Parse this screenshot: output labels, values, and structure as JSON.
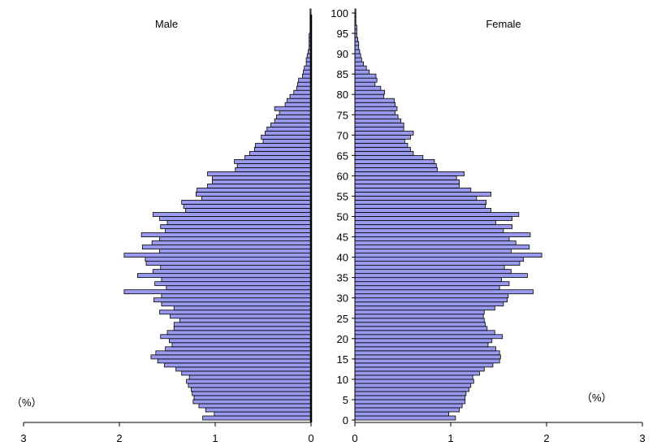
{
  "chart_data": {
    "type": "bar",
    "orientation": "horizontal",
    "layout": "population-pyramid",
    "age_axis": {
      "min": 0,
      "max": 100,
      "step": 5,
      "tick_labels": [
        "0",
        "5",
        "10",
        "15",
        "20",
        "25",
        "30",
        "35",
        "40",
        "45",
        "50",
        "55",
        "60",
        "65",
        "70",
        "75",
        "80",
        "85",
        "90",
        "95",
        "100"
      ]
    },
    "male_panel": {
      "title": "Male",
      "unit_label": "（%）",
      "xlim": [
        0,
        3
      ],
      "direction": "reversed",
      "tick_labels": [
        "0",
        "1",
        "2",
        "3"
      ]
    },
    "female_panel": {
      "title": "Female",
      "unit_label": "（%）",
      "xlim": [
        0,
        3
      ],
      "tick_labels": [
        "0",
        "1",
        "2",
        "3"
      ]
    },
    "ages": [
      0,
      1,
      2,
      3,
      4,
      5,
      6,
      7,
      8,
      9,
      10,
      11,
      12,
      13,
      14,
      15,
      16,
      17,
      18,
      19,
      20,
      21,
      22,
      23,
      24,
      25,
      26,
      27,
      28,
      29,
      30,
      31,
      32,
      33,
      34,
      35,
      36,
      37,
      38,
      39,
      40,
      41,
      42,
      43,
      44,
      45,
      46,
      47,
      48,
      49,
      50,
      51,
      52,
      53,
      54,
      55,
      56,
      57,
      58,
      59,
      60,
      61,
      62,
      63,
      64,
      65,
      66,
      67,
      68,
      69,
      70,
      71,
      72,
      73,
      74,
      75,
      76,
      77,
      78,
      79,
      80,
      81,
      82,
      83,
      84,
      85,
      86,
      87,
      88,
      89,
      90,
      91,
      92,
      93,
      94,
      95,
      96,
      97,
      98,
      99,
      100
    ],
    "series": [
      {
        "name": "Male",
        "values": [
          1.13,
          1.01,
          1.1,
          1.17,
          1.23,
          1.22,
          1.24,
          1.25,
          1.28,
          1.3,
          1.27,
          1.35,
          1.41,
          1.53,
          1.6,
          1.67,
          1.62,
          1.52,
          1.45,
          1.48,
          1.57,
          1.5,
          1.43,
          1.43,
          1.37,
          1.47,
          1.58,
          1.43,
          1.56,
          1.64,
          1.56,
          1.95,
          1.51,
          1.63,
          1.56,
          1.81,
          1.65,
          1.57,
          1.72,
          1.73,
          1.95,
          1.58,
          1.76,
          1.66,
          1.58,
          1.77,
          1.52,
          1.57,
          1.5,
          1.58,
          1.65,
          1.31,
          1.33,
          1.35,
          1.14,
          1.2,
          1.19,
          1.08,
          1.03,
          1.03,
          1.08,
          0.79,
          0.77,
          0.8,
          0.69,
          0.64,
          0.59,
          0.58,
          0.5,
          0.52,
          0.48,
          0.46,
          0.42,
          0.38,
          0.36,
          0.33,
          0.38,
          0.27,
          0.25,
          0.22,
          0.18,
          0.15,
          0.14,
          0.13,
          0.09,
          0.08,
          0.07,
          0.05,
          0.05,
          0.04,
          0.03,
          0.02,
          0.02,
          0.02,
          0.02,
          0.01,
          0.01,
          0.01,
          0.01,
          0.01,
          0.01
        ]
      },
      {
        "name": "Female",
        "values": [
          1.05,
          0.98,
          1.09,
          1.12,
          1.15,
          1.15,
          1.16,
          1.19,
          1.21,
          1.24,
          1.23,
          1.3,
          1.35,
          1.44,
          1.51,
          1.52,
          1.51,
          1.47,
          1.39,
          1.43,
          1.54,
          1.46,
          1.38,
          1.36,
          1.35,
          1.34,
          1.35,
          1.46,
          1.55,
          1.59,
          1.6,
          1.86,
          1.51,
          1.61,
          1.53,
          1.8,
          1.63,
          1.56,
          1.72,
          1.76,
          1.95,
          1.63,
          1.82,
          1.68,
          1.61,
          1.83,
          1.55,
          1.64,
          1.47,
          1.64,
          1.71,
          1.42,
          1.36,
          1.37,
          1.27,
          1.42,
          1.21,
          1.09,
          1.09,
          1.06,
          1.14,
          0.86,
          0.85,
          0.83,
          0.71,
          0.61,
          0.58,
          0.55,
          0.52,
          0.58,
          0.61,
          0.51,
          0.51,
          0.48,
          0.45,
          0.42,
          0.44,
          0.42,
          0.41,
          0.3,
          0.31,
          0.27,
          0.21,
          0.23,
          0.22,
          0.15,
          0.12,
          0.09,
          0.07,
          0.06,
          0.05,
          0.04,
          0.04,
          0.03,
          0.02,
          0.02,
          0.02,
          0.01,
          0.01,
          0.01,
          0.01
        ]
      }
    ]
  }
}
